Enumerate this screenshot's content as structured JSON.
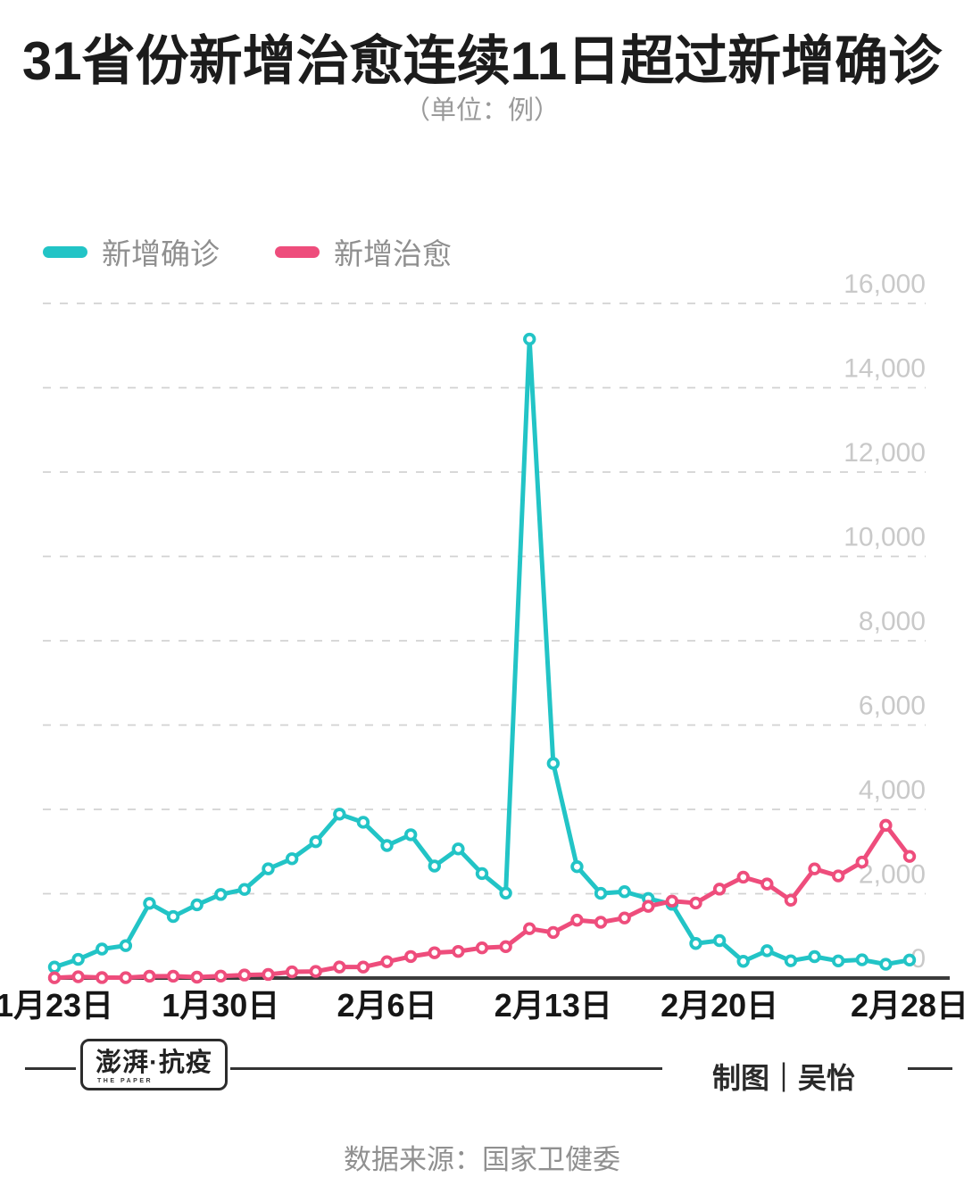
{
  "title": "31省份新增治愈连续11日超过新增确诊",
  "subtitle": "（单位：例）",
  "legend": [
    {
      "key": "confirmed",
      "label": "新增确诊",
      "color": "#22C4C6"
    },
    {
      "key": "cured",
      "label": "新增治愈",
      "color": "#EE4D7C"
    }
  ],
  "footer": {
    "logo_main": "澎湃·抗疫",
    "logo_sub": "THE PAPER",
    "credit": "制图｜吴怡",
    "source": "数据来源：国家卫健委"
  },
  "chart_data": {
    "type": "line",
    "title": "31省份新增治愈连续11日超过新增确诊",
    "unit": "例",
    "categories": [
      "1月23日",
      "1月24日",
      "1月25日",
      "1月26日",
      "1月27日",
      "1月28日",
      "1月29日",
      "1月30日",
      "1月31日",
      "2月1日",
      "2月2日",
      "2月3日",
      "2月4日",
      "2月5日",
      "2月6日",
      "2月7日",
      "2月8日",
      "2月9日",
      "2月10日",
      "2月11日",
      "2月12日",
      "2月13日",
      "2月14日",
      "2月15日",
      "2月16日",
      "2月17日",
      "2月18日",
      "2月19日",
      "2月20日",
      "2月21日",
      "2月22日",
      "2月23日",
      "2月24日",
      "2月25日",
      "2月26日",
      "2月27日",
      "2月28日"
    ],
    "series": [
      {
        "key": "confirmed",
        "name": "新增确诊",
        "color": "#22C4C6",
        "values": [
          259,
          444,
          688,
          769,
          1771,
          1459,
          1737,
          1982,
          2102,
          2590,
          2829,
          3235,
          3887,
          3694,
          3143,
          3399,
          2656,
          3062,
          2478,
          2015,
          15152,
          5090,
          2641,
          2009,
          2048,
          1886,
          1749,
          820,
          889,
          397,
          648,
          409,
          508,
          406,
          433,
          327,
          427
        ]
      },
      {
        "key": "cured",
        "name": "新增治愈",
        "color": "#EE4D7C",
        "values": [
          6,
          31,
          11,
          9,
          43,
          44,
          21,
          47,
          72,
          85,
          147,
          157,
          262,
          261,
          387,
          510,
          600,
          632,
          716,
          744,
          1171,
          1081,
          1373,
          1323,
          1425,
          1701,
          1824,
          1779,
          2109,
          2393,
          2230,
          1846,
          2589,
          2422,
          2750,
          3622,
          2885
        ]
      }
    ],
    "ylim": [
      0,
      16000
    ],
    "y_ticks": [
      {
        "value": 0,
        "label": "0"
      },
      {
        "value": 2000,
        "label": "2,000"
      },
      {
        "value": 4000,
        "label": "4,000"
      },
      {
        "value": 6000,
        "label": "6,000"
      },
      {
        "value": 8000,
        "label": "8,000"
      },
      {
        "value": 10000,
        "label": "10,000"
      },
      {
        "value": 12000,
        "label": "12,000"
      },
      {
        "value": 14000,
        "label": "14,000"
      },
      {
        "value": 16000,
        "label": "16,000"
      }
    ],
    "x_ticks": [
      {
        "index": 0,
        "label": "1月23日"
      },
      {
        "index": 7,
        "label": "1月30日"
      },
      {
        "index": 14,
        "label": "2月6日"
      },
      {
        "index": 21,
        "label": "2月13日"
      },
      {
        "index": 28,
        "label": "2月20日"
      },
      {
        "index": 36,
        "label": "2月28日"
      }
    ],
    "grid": "horizontal-dashed",
    "legend_position": "top-left",
    "colors": {
      "grid_line": "#d2d2d2",
      "y_tick_label": "#c9c9c9",
      "axis_line": "#3b3b3b",
      "x_tick_label": "#161616",
      "marker_fill": "#ffffff"
    }
  }
}
